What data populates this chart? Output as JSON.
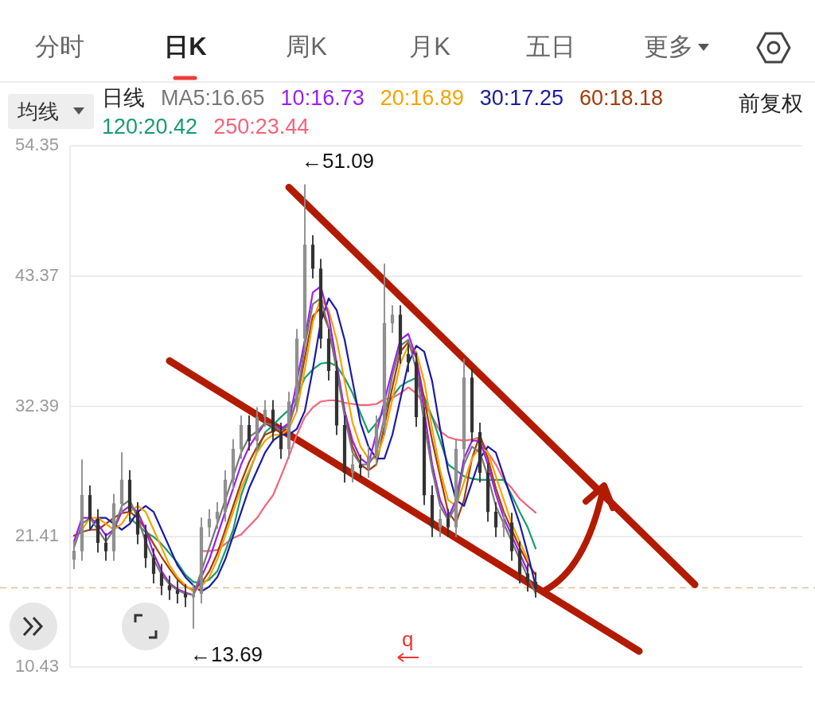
{
  "chart_data": {
    "type": "candlestick",
    "legend_title": "日线",
    "legend": "top",
    "grid": "y",
    "marker": "none",
    "line_style": "solid",
    "categories": [
      null,
      null,
      null,
      null,
      null,
      null,
      null,
      null,
      null,
      null,
      null,
      null,
      null,
      null,
      null,
      null,
      null,
      null,
      null,
      null,
      null,
      null,
      null,
      null,
      null,
      null,
      null,
      null,
      null,
      null,
      null,
      null,
      null,
      null,
      null,
      null,
      null,
      null,
      null,
      null,
      null,
      null,
      null,
      null,
      null,
      null,
      null,
      null,
      null,
      null,
      null,
      null,
      null,
      null,
      null,
      null,
      null,
      null,
      null,
      null,
      null,
      null,
      null,
      null,
      null,
      null,
      null,
      null,
      null,
      null,
      null,
      null,
      null,
      null,
      null,
      null,
      null,
      null,
      null,
      null,
      null,
      null,
      null,
      null,
      null,
      null,
      null,
      null,
      null,
      null,
      null,
      null
    ],
    "ylim": [
      10.43,
      54.35
    ],
    "yticks": [
      10.43,
      21.41,
      32.39,
      43.37,
      54.35
    ],
    "series": [
      {
        "colors": [
          "#8c8c8c",
          "#8c8c8c",
          "#333333",
          "#333333",
          "#333333",
          "#8c8c8c",
          "#8c8c8c",
          "#333333",
          "#333333",
          "#333333",
          "#333333",
          "#333333",
          "#333333",
          "#333333",
          "#333333",
          "#8c8c8c",
          "#8c8c8c",
          "#8c8c8c",
          "#8c8c8c",
          "#8c8c8c",
          "#8c8c8c",
          "#8c8c8c",
          "#333333",
          "#8c8c8c",
          "#8c8c8c",
          "#333333",
          "#333333",
          "#8c8c8c",
          "#8c8c8c",
          "#8c8c8c",
          "#333333",
          "#333333",
          "#333333",
          "#333333",
          "#333333",
          "#8c8c8c",
          "#333333",
          "#8c8c8c",
          "#8c8c8c",
          "#8c8c8c",
          "#8c8c8c",
          "#333333",
          "#333333",
          "#333333",
          "#333333",
          "#333333",
          "#8c8c8c",
          "#333333",
          "#8c8c8c",
          "#8c8c8c",
          "#333333",
          "#333333",
          "#333333",
          "#333333",
          "#8c8c8c",
          "#333333",
          "#333333",
          "#333333",
          "#333333",
          null,
          null,
          null,
          null,
          null,
          null,
          null,
          null,
          null,
          null,
          null,
          null,
          null,
          null,
          null,
          null,
          null,
          null,
          null,
          null,
          null,
          null,
          null,
          null,
          null,
          null,
          null,
          null,
          null,
          null,
          null,
          null,
          null
        ],
        "ohlc": [
          [
            19.5,
            21.0,
            18.7,
            20.2
          ],
          [
            20.2,
            27.9,
            19.4,
            24.9
          ],
          [
            24.9,
            25.7,
            22.1,
            22.9
          ],
          [
            22.9,
            23.7,
            20.1,
            20.9
          ],
          [
            20.9,
            21.7,
            19.4,
            20.2
          ],
          [
            20.2,
            25.0,
            19.4,
            24.2
          ],
          [
            24.2,
            28.5,
            23.4,
            26.2
          ],
          [
            26.2,
            27.0,
            22.7,
            23.5
          ],
          [
            23.5,
            24.3,
            20.8,
            21.6
          ],
          [
            21.6,
            22.4,
            18.8,
            19.6
          ],
          [
            19.6,
            20.4,
            17.5,
            18.3
          ],
          [
            18.3,
            19.1,
            16.5,
            17.3
          ],
          [
            17.3,
            18.1,
            16.1,
            16.9
          ],
          [
            16.9,
            17.7,
            15.8,
            16.6
          ],
          [
            16.6,
            17.4,
            15.5,
            16.3
          ],
          [
            16.3,
            17.4,
            13.69,
            16.6
          ],
          [
            16.6,
            23.0,
            15.8,
            22.2
          ],
          [
            22.2,
            23.7,
            21.4,
            22.9
          ],
          [
            22.9,
            24.3,
            22.1,
            23.5
          ],
          [
            23.5,
            27.0,
            22.7,
            26.2
          ],
          [
            26.2,
            29.6,
            25.4,
            28.8
          ],
          [
            28.8,
            31.6,
            28.0,
            30.8
          ],
          [
            30.8,
            31.6,
            28.7,
            29.5
          ],
          [
            29.5,
            32.3,
            28.7,
            31.5
          ],
          [
            31.5,
            32.9,
            30.7,
            32.1
          ],
          [
            32.1,
            32.9,
            29.4,
            30.2
          ],
          [
            30.2,
            31.0,
            28.0,
            28.8
          ],
          [
            28.8,
            33.6,
            28.0,
            32.8
          ],
          [
            32.8,
            38.9,
            32.0,
            38.1
          ],
          [
            38.1,
            51.09,
            37.3,
            46.0
          ],
          [
            46.0,
            46.8,
            43.2,
            44.0
          ],
          [
            44.0,
            44.8,
            37.3,
            38.1
          ],
          [
            38.1,
            38.9,
            34.6,
            35.4
          ],
          [
            35.4,
            36.2,
            30.0,
            30.8
          ],
          [
            30.8,
            31.6,
            26.0,
            26.8
          ],
          [
            26.8,
            28.3,
            26.0,
            27.5
          ],
          [
            27.5,
            28.3,
            26.4,
            27.2
          ],
          [
            27.2,
            29.0,
            26.4,
            28.2
          ],
          [
            28.2,
            31.6,
            27.4,
            30.8
          ],
          [
            30.8,
            44.4,
            30.0,
            39.4
          ],
          [
            39.4,
            40.9,
            38.6,
            40.1
          ],
          [
            40.1,
            40.9,
            36.0,
            36.8
          ],
          [
            36.8,
            37.6,
            35.3,
            36.1
          ],
          [
            36.1,
            36.9,
            30.7,
            31.5
          ],
          [
            31.5,
            32.3,
            24.1,
            24.9
          ],
          [
            24.9,
            25.7,
            21.4,
            22.2
          ],
          [
            22.2,
            23.7,
            21.4,
            22.9
          ],
          [
            22.9,
            23.7,
            21.4,
            22.2
          ],
          [
            22.2,
            29.6,
            21.4,
            28.8
          ],
          [
            28.8,
            36.4,
            28.0,
            34.8
          ],
          [
            34.8,
            35.6,
            29.4,
            30.2
          ],
          [
            30.2,
            31.0,
            26.0,
            26.8
          ],
          [
            26.8,
            27.6,
            22.7,
            23.5
          ],
          [
            23.5,
            24.3,
            21.4,
            22.2
          ],
          [
            22.2,
            23.4,
            21.4,
            22.6
          ],
          [
            22.6,
            23.4,
            19.4,
            20.2
          ],
          [
            20.2,
            21.0,
            17.5,
            18.3
          ],
          [
            18.3,
            19.1,
            16.8,
            17.6
          ],
          [
            17.6,
            18.4,
            16.3,
            17.1
          ],
          null,
          null,
          null,
          null,
          null,
          null,
          null,
          null,
          null,
          null,
          null,
          null,
          null,
          null,
          null,
          null,
          null,
          null,
          null,
          null,
          null,
          null,
          null,
          null,
          null,
          null,
          null,
          null,
          null,
          null,
          null,
          null,
          null
        ]
      },
      {
        "type": "line",
        "name": "MA5:16.65",
        "color": "#777777",
        "values": [
          20.5,
          22.5,
          23.0,
          22.0,
          21.0,
          22.0,
          24.0,
          24.5,
          23.0,
          21.0,
          19.5,
          18.2,
          17.4,
          16.9,
          16.6,
          16.5,
          18.5,
          20.5,
          22.5,
          24.5,
          26.5,
          28.5,
          29.8,
          30.3,
          31.0,
          30.8,
          30.3,
          30.8,
          33.0,
          37.5,
          41.0,
          41.5,
          39.0,
          35.5,
          31.5,
          28.5,
          27.5,
          27.5,
          28.5,
          31.5,
          35.0,
          37.5,
          38.0,
          35.5,
          31.0,
          27.0,
          24.0,
          22.8,
          24.0,
          27.5,
          29.0,
          28.5,
          26.5,
          24.0,
          22.5,
          21.0,
          19.5,
          18.0,
          16.65,
          null,
          null,
          null,
          null,
          null,
          null,
          null,
          null,
          null,
          null,
          null,
          null,
          null,
          null,
          null,
          null,
          null,
          null,
          null,
          null,
          null,
          null,
          null,
          null,
          null,
          null,
          null,
          null,
          null,
          null,
          null,
          null,
          null
        ]
      },
      {
        "type": "line",
        "name": "10:16.73",
        "color": "#9b1ff0",
        "values": [
          21.0,
          23.0,
          23.0,
          22.5,
          21.5,
          22.0,
          23.5,
          24.0,
          23.5,
          22.0,
          20.0,
          18.5,
          17.5,
          17.0,
          16.7,
          16.5,
          18.0,
          19.5,
          21.5,
          23.5,
          25.5,
          27.5,
          29.0,
          30.0,
          31.0,
          30.8,
          30.5,
          31.0,
          null,
          38.0,
          42.0,
          42.5,
          40.0,
          36.0,
          32.0,
          29.5,
          28.0,
          27.5,
          null,
          null,
          35.5,
          38.0,
          38.5,
          36.5,
          32.0,
          27.5,
          24.5,
          23.0,
          24.5,
          28.0,
          29.5,
          29.5,
          27.5,
          25.0,
          23.0,
          21.5,
          20.0,
          18.5,
          null,
          null,
          null,
          null,
          null,
          null,
          null,
          null,
          null,
          null,
          null,
          null,
          null,
          null,
          null,
          null,
          null,
          null,
          null,
          null,
          null,
          null,
          null,
          null,
          null,
          null,
          null,
          null,
          null,
          null,
          null,
          null,
          null,
          null
        ]
      },
      {
        "type": "line",
        "name": "20:16.89",
        "color": "#f5a300",
        "values": [
          null,
          22.0,
          23.0,
          23.0,
          22.5,
          22.0,
          22.5,
          23.5,
          24.0,
          23.5,
          22.0,
          20.5,
          19.0,
          18.0,
          17.3,
          16.8,
          17.2,
          18.0,
          19.5,
          21.5,
          23.5,
          25.5,
          27.0,
          28.5,
          29.5,
          30.0,
          30.0,
          30.5,
          32.0,
          35.5,
          39.5,
          41.5,
          40.5,
          38.0,
          34.5,
          31.0,
          29.0,
          28.0,
          28.0,
          30.0,
          33.0,
          36.0,
          37.5,
          37.0,
          34.5,
          30.5,
          27.0,
          24.5,
          24.0,
          26.0,
          28.0,
          29.0,
          28.5,
          26.5,
          24.5,
          22.5,
          21.0,
          19.5,
          null,
          null,
          null,
          null,
          null,
          null,
          null,
          null,
          null,
          null,
          null,
          null,
          null,
          null,
          null,
          null,
          null,
          null,
          null,
          null,
          null,
          null,
          null,
          null,
          null,
          null,
          null,
          null,
          null,
          null,
          null,
          null,
          null,
          null
        ]
      },
      {
        "type": "line",
        "name": "30:17.25",
        "color": "#1a1aa6",
        "values": [
          null,
          null,
          22.0,
          23.0,
          23.0,
          22.5,
          22.0,
          22.5,
          23.5,
          24.0,
          23.5,
          22.0,
          20.5,
          19.0,
          18.0,
          17.3,
          16.8,
          17.2,
          18.0,
          19.5,
          21.5,
          23.5,
          25.5,
          27.0,
          28.5,
          29.5,
          30.0,
          30.0,
          30.5,
          32.0,
          35.5,
          39.5,
          41.5,
          40.5,
          38.0,
          34.5,
          31.0,
          29.0,
          28.0,
          28.0,
          30.0,
          33.0,
          36.0,
          37.5,
          37.0,
          34.5,
          30.5,
          27.0,
          24.5,
          24.0,
          26.0,
          28.0,
          29.0,
          28.5,
          26.5,
          24.5,
          22.5,
          20.0,
          17.25,
          null,
          null,
          null,
          null,
          null,
          null,
          null,
          null,
          null,
          null,
          null,
          null,
          null,
          null,
          null,
          null,
          null,
          null,
          null,
          null,
          null,
          null,
          null,
          null,
          null,
          null,
          null,
          null,
          null,
          null,
          null,
          null,
          null
        ]
      },
      {
        "type": "line",
        "name": "60:18.18",
        "color": "#a33b0c",
        "values": [
          21.5,
          21.8,
          22.0,
          22.0,
          22.5,
          23.0,
          23.4,
          23.5,
          23.0,
          22.0,
          20.8,
          19.7,
          18.7,
          17.8,
          17.2,
          16.9,
          17.5,
          18.5,
          20.0,
          22.0,
          24.0,
          26.0,
          27.7,
          29.0,
          30.0,
          30.3,
          30.5,
          30.8,
          33.0,
          36.5,
          40.0,
          40.7,
          39.0,
          null,
          32.0,
          29.0,
          27.5,
          27.0,
          27.5,
          null,
          34.0,
          37.0,
          37.8,
          36.5,
          33.0,
          29.5,
          26.5,
          23.5,
          22.6,
          24.5,
          28.0,
          30.0,
          28.0,
          25.5,
          23.5,
          22.0,
          20.5,
          19.2,
          18.18,
          null,
          null,
          null,
          null,
          null,
          null,
          null,
          null,
          null,
          null,
          null,
          null,
          null,
          null,
          null,
          null,
          null,
          null,
          null,
          null,
          null,
          null,
          null,
          null,
          null,
          null,
          null,
          null,
          null,
          null,
          null,
          null,
          null
        ]
      },
      {
        "type": "line",
        "name": "120:20.42",
        "color": "#179c6e",
        "values": [
          null,
          null,
          null,
          null,
          null,
          null,
          null,
          23.0,
          22.4,
          21.8,
          21.4,
          20.8,
          20.0,
          19.2,
          18.2,
          17.6,
          17.5,
          17.8,
          18.5,
          20.2,
          22.0,
          24.9,
          26.8,
          28.6,
          30.2,
          30.8,
          31.5,
          32.1,
          33.2,
          34.8,
          35.5,
          36.0,
          36.1,
          35.8,
          34.8,
          33.5,
          31.8,
          30.2,
          31.0,
          null,
          33.2,
          34.1,
          34.5,
          34.8,
          33.2,
          31.5,
          29.5,
          27.5,
          27.0,
          26.5,
          26.3,
          26.2,
          26.2,
          26.2,
          26.2,
          24.9,
          23.5,
          22.2,
          20.42,
          null,
          null,
          null,
          null,
          null,
          null,
          null,
          null,
          null,
          null,
          null,
          null,
          null,
          null,
          null,
          null,
          null,
          null,
          null,
          null,
          null,
          null,
          null,
          null,
          null,
          null,
          null,
          null,
          null,
          null,
          null,
          null,
          null
        ]
      },
      {
        "type": "line",
        "name": "250:23.44",
        "color": "#f5637a",
        "values": [
          null,
          null,
          null,
          null,
          null,
          null,
          null,
          null,
          null,
          null,
          null,
          null,
          null,
          null,
          null,
          null,
          20.2,
          20.2,
          20.3,
          20.8,
          21.3,
          21.6,
          22.3,
          23.0,
          24.0,
          24.9,
          26.5,
          28.2,
          30.0,
          31.5,
          32.3,
          32.8,
          32.9,
          32.9,
          32.7,
          32.6,
          32.5,
          32.5,
          32.6,
          33.0,
          33.1,
          33.5,
          34.0,
          33.5,
          32.6,
          31.5,
          30.3,
          29.8,
          29.6,
          29.5,
          29.6,
          29.8,
          28.5,
          27.5,
          26.2,
          25.5,
          24.6,
          24.0,
          23.44,
          null,
          null,
          null,
          null,
          null,
          null,
          null,
          null,
          null,
          null,
          null,
          null,
          null,
          null,
          null,
          null,
          null,
          null,
          null,
          null,
          null,
          null,
          null,
          null,
          null,
          null,
          null,
          null,
          null,
          null,
          null,
          null,
          null
        ]
      },
      {
        "type": "line",
        "color": "#b31b00",
        "values": [
          null,
          null,
          null,
          null,
          null,
          null,
          null,
          null,
          null,
          null,
          null,
          null,
          null,
          null,
          null,
          null,
          null,
          null,
          null,
          null,
          null,
          null,
          null,
          null,
          null,
          null,
          null,
          50.85,
          null,
          null,
          null,
          null,
          null,
          null,
          null,
          null,
          null,
          null,
          null,
          null,
          null,
          null,
          null,
          null,
          null,
          null,
          null,
          null,
          null,
          null,
          null,
          null,
          null,
          null,
          null,
          null,
          null,
          null,
          null,
          null,
          null,
          null,
          null,
          null,
          null,
          null,
          null,
          null,
          null,
          null,
          null,
          null,
          null,
          null,
          null,
          null,
          null,
          null,
          17.38,
          null,
          null,
          null,
          null,
          null,
          null,
          null,
          null,
          null,
          null,
          null,
          null,
          null
        ]
      },
      {
        "type": "line",
        "color": "#b31b00",
        "values": [
          null,
          null,
          null,
          null,
          null,
          null,
          null,
          null,
          null,
          null,
          null,
          null,
          36.23,
          null,
          null,
          null,
          null,
          null,
          null,
          null,
          null,
          null,
          null,
          null,
          null,
          null,
          null,
          null,
          null,
          null,
          null,
          null,
          null,
          null,
          null,
          null,
          null,
          null,
          null,
          null,
          null,
          null,
          null,
          null,
          null,
          null,
          null,
          null,
          null,
          null,
          null,
          null,
          null,
          null,
          null,
          null,
          null,
          null,
          null,
          null,
          null,
          null,
          null,
          null,
          null,
          null,
          null,
          null,
          null,
          null,
          null,
          11.76,
          null,
          null,
          null,
          null,
          null,
          null,
          null,
          null,
          null,
          null,
          null,
          null,
          null,
          null,
          null,
          null,
          null,
          null,
          null,
          null
        ]
      }
    ],
    "ref_lines": [
      {
        "axis": "y",
        "value": 17.1,
        "color": "#e2bd93",
        "line_style": "dashed"
      }
    ],
    "annotations": [
      "分时",
      "日K",
      "周K",
      "月K",
      "五日",
      "更多",
      "均线",
      "前复权",
      "←51.09",
      "←13.69",
      "q"
    ]
  }
}
